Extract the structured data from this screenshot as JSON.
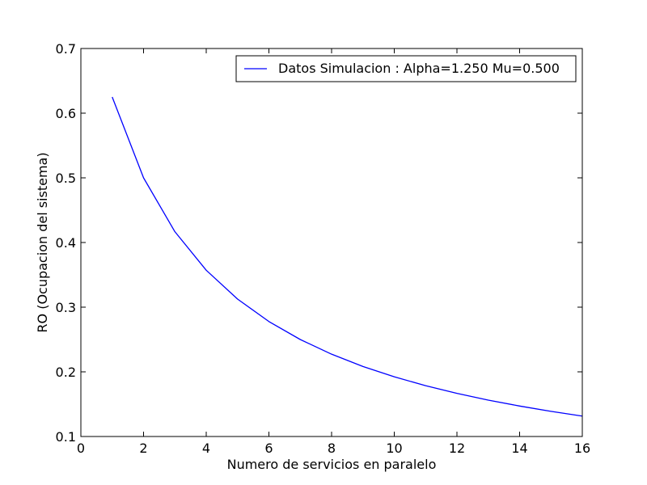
{
  "chart_data": {
    "type": "line",
    "title": "",
    "xlabel": "Numero de servicios en paralelo",
    "ylabel": "RO (Ocupacion del sistema)",
    "xlim": [
      0,
      16
    ],
    "ylim": [
      0.1,
      0.7
    ],
    "x_ticks": [
      0,
      2,
      4,
      6,
      8,
      10,
      12,
      14,
      16
    ],
    "y_ticks": [
      0.1,
      0.2,
      0.3,
      0.4,
      0.5,
      0.6,
      0.7
    ],
    "x_tick_labels": [
      "0",
      "2",
      "4",
      "6",
      "8",
      "10",
      "12",
      "14",
      "16"
    ],
    "y_tick_labels": [
      "0.1",
      "0.2",
      "0.3",
      "0.4",
      "0.5",
      "0.6",
      "0.7"
    ],
    "grid": false,
    "legend_position": "top-right",
    "series": [
      {
        "name": "Datos Simulacion : Alpha=1.250 Mu=0.500",
        "color": "#0000ff",
        "x": [
          1,
          2,
          3,
          4,
          5,
          6,
          7,
          8,
          9,
          10,
          11,
          12,
          13,
          14,
          15,
          16
        ],
        "y": [
          0.625,
          0.5,
          0.4167,
          0.3571,
          0.3125,
          0.2778,
          0.25,
          0.2273,
          0.2083,
          0.1923,
          0.1786,
          0.1667,
          0.1563,
          0.1471,
          0.1389,
          0.1316
        ]
      }
    ]
  }
}
